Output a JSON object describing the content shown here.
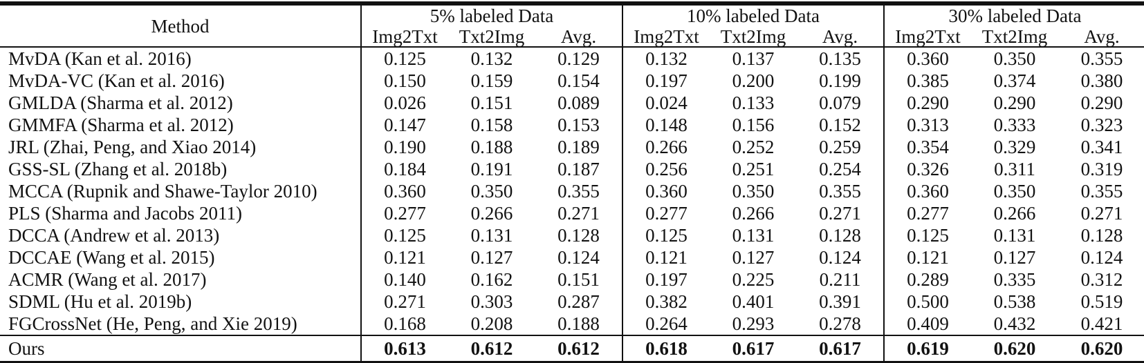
{
  "table": {
    "header": {
      "method_label": "Method",
      "groups": [
        {
          "label": "5% labeled Data",
          "subcolumns": [
            "Img2Txt",
            "Txt2Img",
            "Avg."
          ]
        },
        {
          "label": "10% labeled Data",
          "subcolumns": [
            "Img2Txt",
            "Txt2Img",
            "Avg."
          ]
        },
        {
          "label": "30% labeled Data",
          "subcolumns": [
            "Img2Txt",
            "Txt2Img",
            "Avg."
          ]
        }
      ]
    },
    "rows": [
      {
        "method": "MvDA (Kan et al. 2016)",
        "bold": false,
        "values": [
          "0.125",
          "0.132",
          "0.129",
          "0.132",
          "0.137",
          "0.135",
          "0.360",
          "0.350",
          "0.355"
        ]
      },
      {
        "method": "MvDA-VC (Kan et al. 2016)",
        "bold": false,
        "values": [
          "0.150",
          "0.159",
          "0.154",
          "0.197",
          "0.200",
          "0.199",
          "0.385",
          "0.374",
          "0.380"
        ]
      },
      {
        "method": "GMLDA (Sharma et al. 2012)",
        "bold": false,
        "values": [
          "0.026",
          "0.151",
          "0.089",
          "0.024",
          "0.133",
          "0.079",
          "0.290",
          "0.290",
          "0.290"
        ]
      },
      {
        "method": "GMMFA (Sharma et al. 2012)",
        "bold": false,
        "values": [
          "0.147",
          "0.158",
          "0.153",
          "0.148",
          "0.156",
          "0.152",
          "0.313",
          "0.333",
          "0.323"
        ]
      },
      {
        "method": "JRL (Zhai, Peng, and Xiao 2014)",
        "bold": false,
        "values": [
          "0.190",
          "0.188",
          "0.189",
          "0.266",
          "0.252",
          "0.259",
          "0.354",
          "0.329",
          "0.341"
        ]
      },
      {
        "method": "GSS-SL (Zhang et al. 2018b)",
        "bold": false,
        "values": [
          "0.184",
          "0.191",
          "0.187",
          "0.256",
          "0.251",
          "0.254",
          "0.326",
          "0.311",
          "0.319"
        ]
      },
      {
        "method": "MCCA (Rupnik and Shawe-Taylor 2010)",
        "bold": false,
        "values": [
          "0.360",
          "0.350",
          "0.355",
          "0.360",
          "0.350",
          "0.355",
          "0.360",
          "0.350",
          "0.355"
        ]
      },
      {
        "method": "PLS (Sharma and Jacobs 2011)",
        "bold": false,
        "values": [
          "0.277",
          "0.266",
          "0.271",
          "0.277",
          "0.266",
          "0.271",
          "0.277",
          "0.266",
          "0.271"
        ]
      },
      {
        "method": "DCCA (Andrew et al. 2013)",
        "bold": false,
        "values": [
          "0.125",
          "0.131",
          "0.128",
          "0.125",
          "0.131",
          "0.128",
          "0.125",
          "0.131",
          "0.128"
        ]
      },
      {
        "method": "DCCAE (Wang et al. 2015)",
        "bold": false,
        "values": [
          "0.121",
          "0.127",
          "0.124",
          "0.121",
          "0.127",
          "0.124",
          "0.121",
          "0.127",
          "0.124"
        ]
      },
      {
        "method": "ACMR (Wang et al. 2017)",
        "bold": false,
        "values": [
          "0.140",
          "0.162",
          "0.151",
          "0.197",
          "0.225",
          "0.211",
          "0.289",
          "0.335",
          "0.312"
        ]
      },
      {
        "method": "SDML (Hu et al. 2019b)",
        "bold": false,
        "values": [
          "0.271",
          "0.303",
          "0.287",
          "0.382",
          "0.401",
          "0.391",
          "0.500",
          "0.538",
          "0.519"
        ]
      },
      {
        "method": "FGCrossNet (He, Peng, and Xie 2019)",
        "bold": false,
        "values": [
          "0.168",
          "0.208",
          "0.188",
          "0.264",
          "0.293",
          "0.278",
          "0.409",
          "0.432",
          "0.421"
        ]
      },
      {
        "method": "Ours",
        "bold": true,
        "values": [
          "0.613",
          "0.612",
          "0.612",
          "0.618",
          "0.617",
          "0.617",
          "0.619",
          "0.620",
          "0.620"
        ]
      }
    ]
  },
  "colors": {
    "text": "#121212",
    "rule": "#111111",
    "background": "#ffffff"
  }
}
